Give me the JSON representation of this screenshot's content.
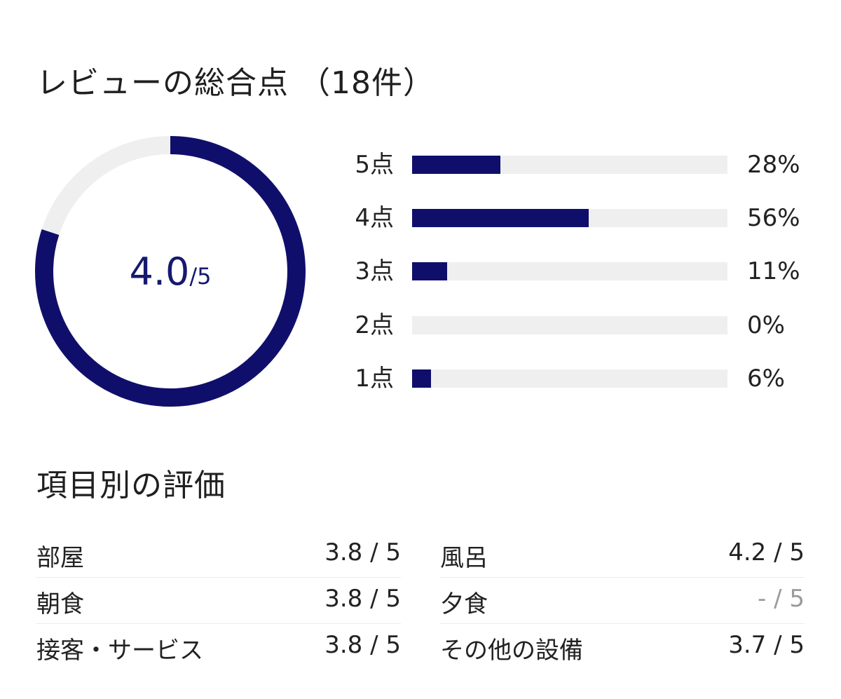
{
  "overall": {
    "title": "レビューの総合点 （18件）",
    "score": "4.0",
    "score_max": "/5",
    "score_fraction": 0.8,
    "colors": {
      "accent": "#0f0f6b",
      "track": "#efefef"
    }
  },
  "distribution": [
    {
      "label": "5点",
      "percent_text": "28%",
      "percent": 28
    },
    {
      "label": "4点",
      "percent_text": "56%",
      "percent": 56
    },
    {
      "label": "3点",
      "percent_text": "11%",
      "percent": 11
    },
    {
      "label": "2点",
      "percent_text": "0%",
      "percent": 0
    },
    {
      "label": "1点",
      "percent_text": "6%",
      "percent": 6
    }
  ],
  "categories": {
    "title": "項目別の評価",
    "left": [
      {
        "name": "部屋",
        "value": "3.8 / 5"
      },
      {
        "name": "朝食",
        "value": "3.8 / 5"
      },
      {
        "name": "接客・サービス",
        "value": "3.8 / 5"
      }
    ],
    "right": [
      {
        "name": "風呂",
        "value": "4.2 / 5"
      },
      {
        "name": "夕食",
        "value": "- / 5",
        "muted": true
      },
      {
        "name": "その他の設備",
        "value": "3.7 / 5"
      }
    ]
  }
}
